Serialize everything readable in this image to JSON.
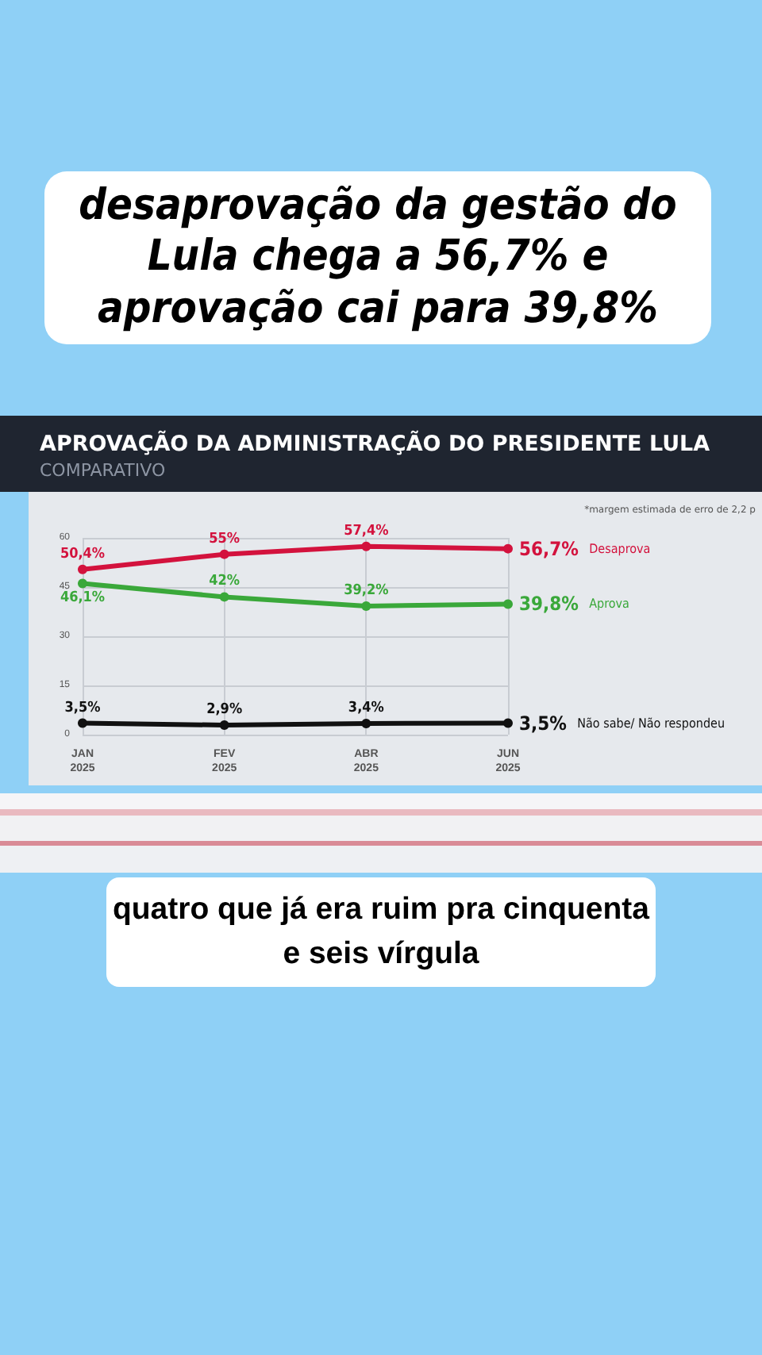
{
  "chart_data": {
    "type": "line",
    "title": "APROVAÇÃO DA ADMINISTRAÇÃO DO PRESIDENTE LULA",
    "subtitle": "COMPARATIVO",
    "categories": [
      "JAN\n2025",
      "FEV\n2025",
      "ABR\n2025",
      "JUN\n2025"
    ],
    "series": [
      {
        "name": "Desaprova",
        "color": "#d3123d",
        "values": [
          50.4,
          55,
          57.4,
          56.7
        ],
        "value_labels": [
          "50,4%",
          "55%",
          "57,4%",
          "56,7%"
        ]
      },
      {
        "name": "Aprova",
        "color": "#3aa83a",
        "values": [
          46.1,
          42,
          39.2,
          39.8
        ],
        "value_labels": [
          "46,1%",
          "42%",
          "39,2%",
          "39,8%"
        ]
      },
      {
        "name": "Não sabe/ Não respondeu",
        "color": "#111111",
        "values": [
          3.5,
          2.9,
          3.4,
          3.5
        ],
        "value_labels": [
          "3,5%",
          "2,9%",
          "3,4%",
          "3,5%"
        ]
      }
    ],
    "ylim": [
      0,
      60
    ],
    "yticks": [
      0,
      15,
      30,
      45,
      60
    ],
    "grid": true,
    "marker": "circle",
    "line_style": "solid",
    "legend": false,
    "annotations": [
      "desaprovação da gestão do Lula chega a 56,7% e aprovação cai para 39,8%",
      "*margem estimada de erro de 2,2 p",
      "quatro que já era ruim pra cinquenta e seis vírgula"
    ]
  }
}
